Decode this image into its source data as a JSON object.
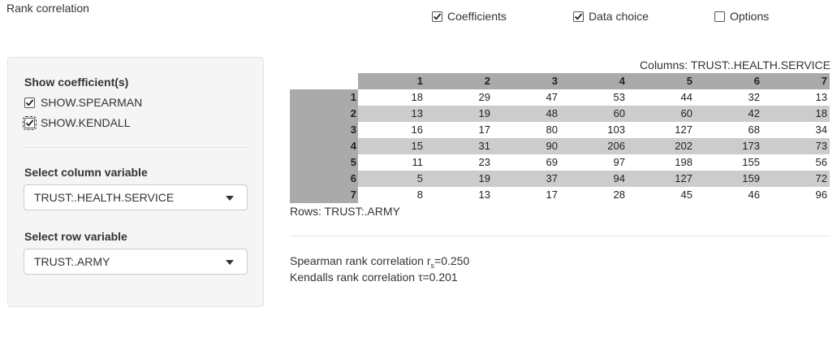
{
  "app_title": "Rank correlation",
  "top_checks": [
    {
      "label": "Coefficients",
      "checked": true
    },
    {
      "label": "Data choice",
      "checked": true
    },
    {
      "label": "Options",
      "checked": false
    }
  ],
  "sidebar": {
    "show_heading": "Show coefficient(s)",
    "spearman_label": "SHOW.SPEARMAN",
    "kendall_label": "SHOW.KENDALL",
    "column_heading": "Select column variable",
    "column_value": "TRUST:.HEALTH.SERVICE",
    "row_heading": "Select row variable",
    "row_value": "TRUST:.ARMY"
  },
  "table": {
    "columns_caption": "Columns: TRUST:.HEALTH.SERVICE",
    "col_headers": [
      "1",
      "2",
      "3",
      "4",
      "5",
      "6",
      "7"
    ],
    "rows": [
      {
        "label": "1",
        "cells": [
          "18",
          "29",
          "47",
          "53",
          "44",
          "32",
          "13"
        ]
      },
      {
        "label": "2",
        "cells": [
          "13",
          "19",
          "48",
          "60",
          "60",
          "42",
          "18"
        ]
      },
      {
        "label": "3",
        "cells": [
          "16",
          "17",
          "80",
          "103",
          "127",
          "68",
          "34"
        ]
      },
      {
        "label": "4",
        "cells": [
          "15",
          "31",
          "90",
          "206",
          "202",
          "173",
          "73"
        ]
      },
      {
        "label": "5",
        "cells": [
          "11",
          "23",
          "69",
          "97",
          "198",
          "155",
          "56"
        ]
      },
      {
        "label": "6",
        "cells": [
          "5",
          "19",
          "37",
          "94",
          "127",
          "159",
          "72"
        ]
      },
      {
        "label": "7",
        "cells": [
          "8",
          "13",
          "17",
          "28",
          "45",
          "46",
          "96"
        ]
      }
    ],
    "rows_caption": "Rows: TRUST:.ARMY"
  },
  "results": {
    "spearman_prefix": "Spearman rank correlation r",
    "spearman_sub": "s",
    "spearman_value": "=0.250",
    "kendall_text": "Kendalls rank correlation τ=0.201"
  }
}
